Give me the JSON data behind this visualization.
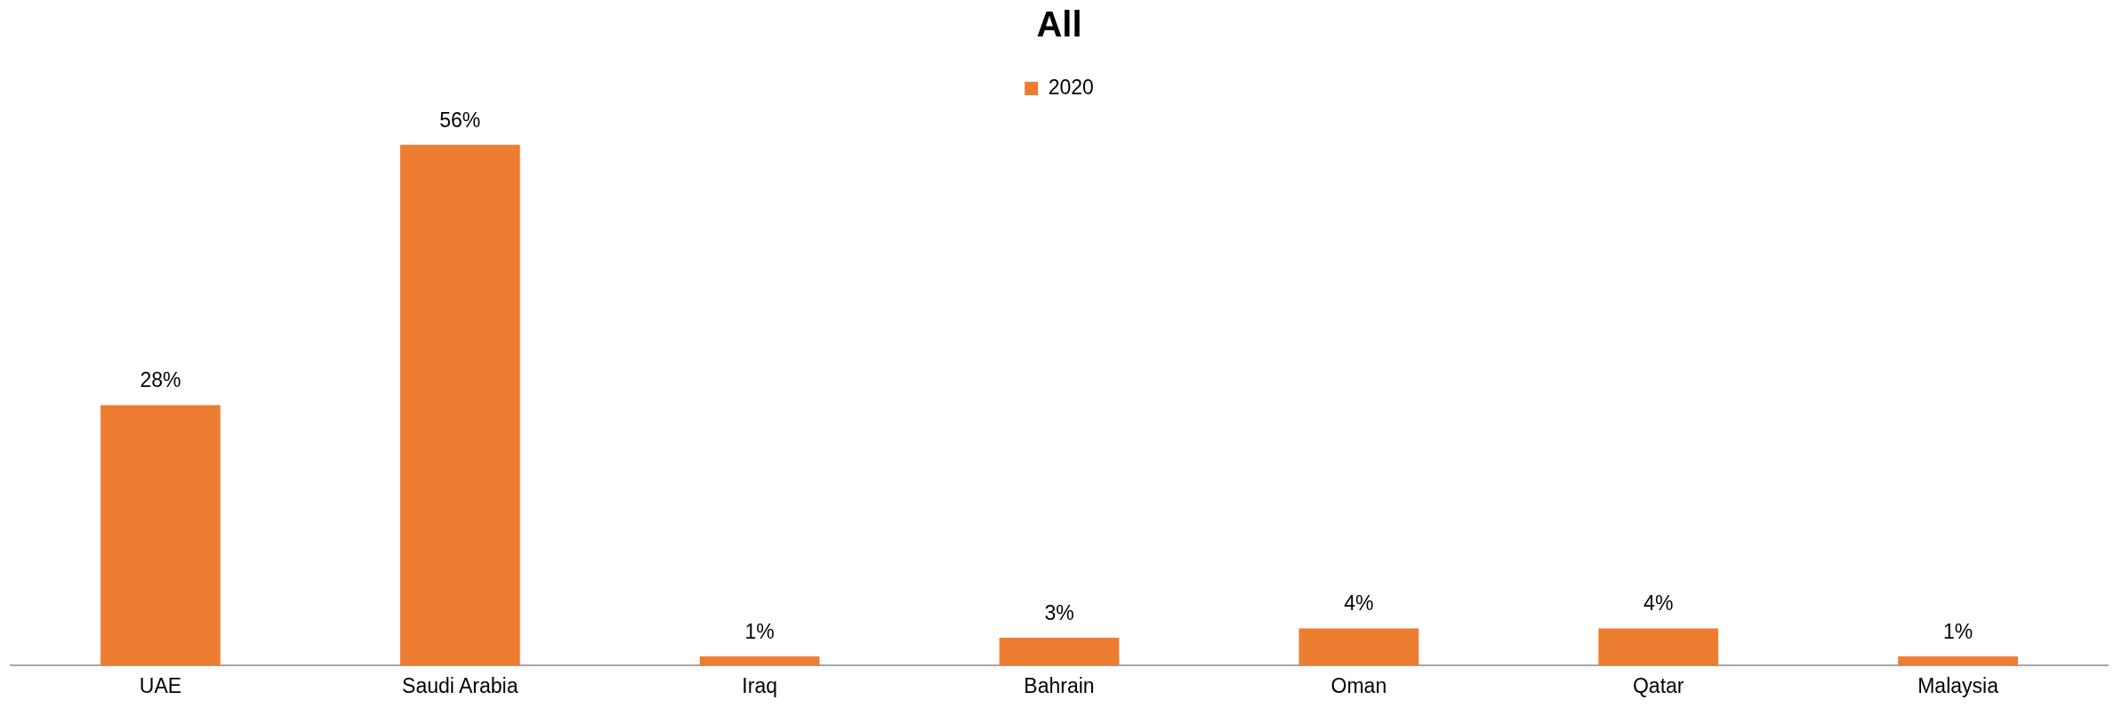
{
  "chart_data": {
    "type": "bar",
    "title": "All",
    "categories": [
      "UAE",
      "Saudi Arabia",
      "Iraq",
      "Bahrain",
      "Oman",
      "Qatar",
      "Malaysia"
    ],
    "series": [
      {
        "name": "2020",
        "color": "#ed7d31",
        "values": [
          28,
          56,
          1,
          3,
          4,
          4,
          1
        ],
        "value_labels": [
          "28%",
          "56%",
          "1%",
          "3%",
          "4%",
          "4%",
          "1%"
        ]
      }
    ],
    "tick_labels": "x",
    "legend": "top"
  }
}
